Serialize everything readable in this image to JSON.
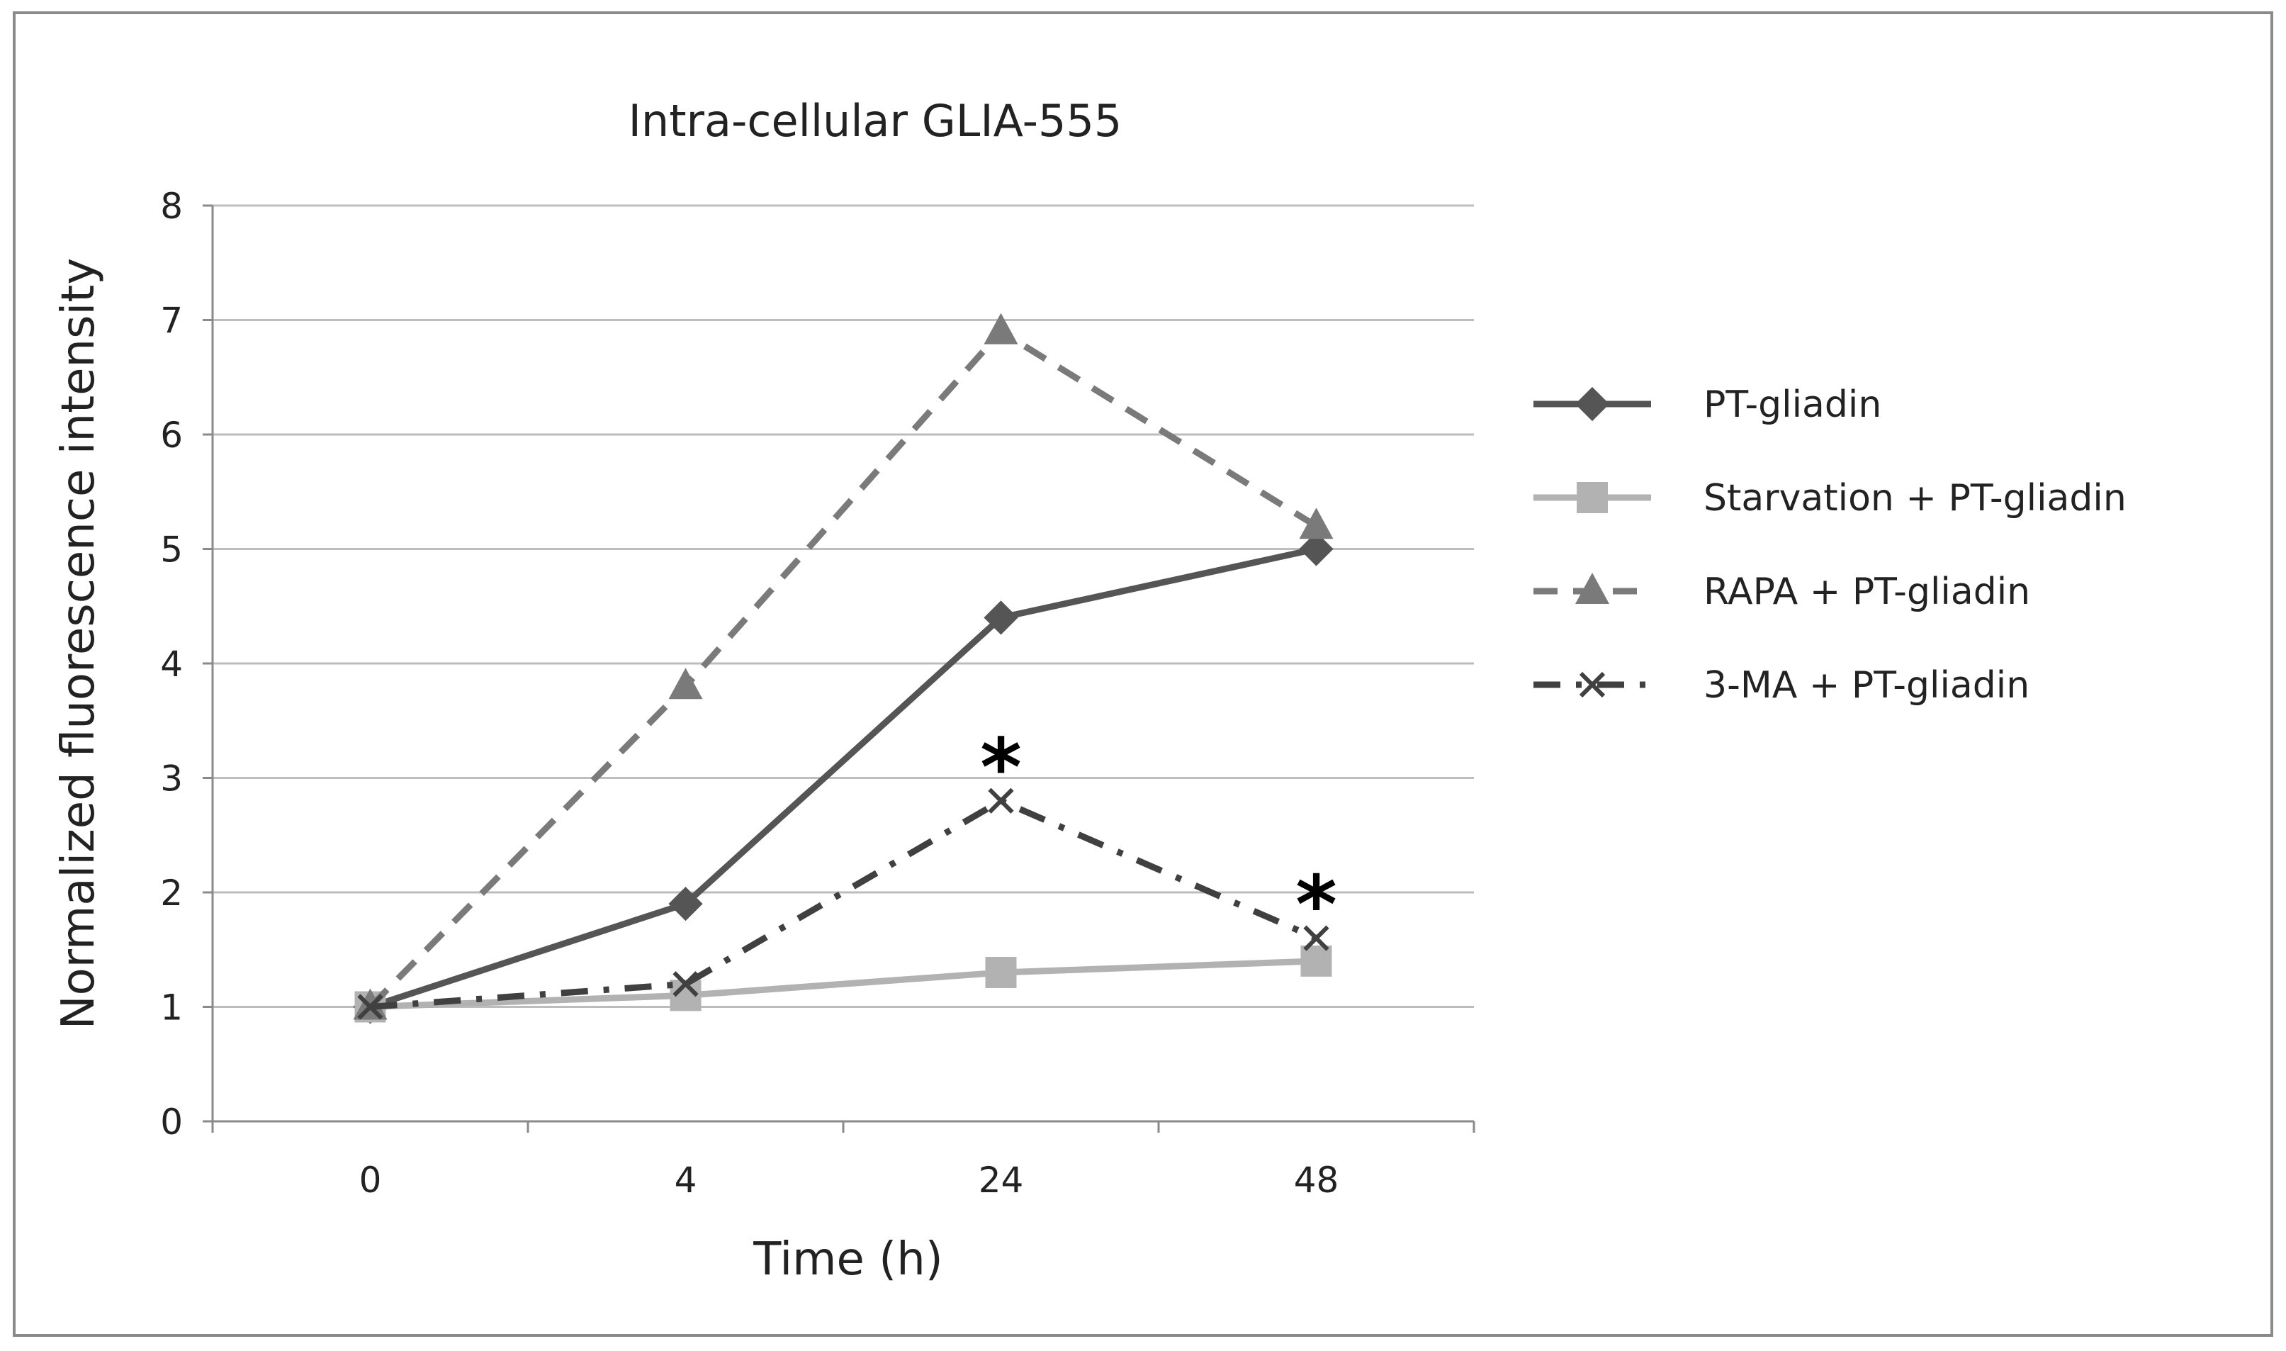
{
  "chart_data": {
    "type": "line",
    "title": "Intra-cellular GLIA-555",
    "xlabel": "Time (h)",
    "ylabel": "Normalized fluorescence intensity",
    "categories": [
      "0",
      "4",
      "24",
      "48"
    ],
    "ylim": [
      0,
      8
    ],
    "yticks": [
      "0",
      "1",
      "2",
      "3",
      "4",
      "5",
      "6",
      "7",
      "8"
    ],
    "grid": true,
    "legend": "right",
    "series": [
      {
        "name": "PT-gliadin",
        "values": [
          1.0,
          1.9,
          4.4,
          5.0
        ],
        "color": "#555555",
        "line": "solid",
        "marker": "diamond"
      },
      {
        "name": "Starvation + PT-gliadin",
        "values": [
          1.0,
          1.1,
          1.3,
          1.4
        ],
        "color": "#b2b2b2",
        "line": "solid",
        "marker": "square"
      },
      {
        "name": "RAPA + PT-gliadin",
        "values": [
          1.0,
          3.8,
          6.9,
          5.2
        ],
        "color": "#7a7a7a",
        "line": "dash",
        "marker": "triangle"
      },
      {
        "name": "3-MA + PT-gliadin",
        "values": [
          1.0,
          1.2,
          2.8,
          1.6
        ],
        "color": "#404040",
        "line": "dashdot",
        "marker": "x"
      }
    ],
    "annotations": [
      {
        "text": "*",
        "series": "3-MA + PT-gliadin",
        "category": "24"
      },
      {
        "text": "*",
        "series": "3-MA + PT-gliadin",
        "category": "48"
      }
    ]
  }
}
